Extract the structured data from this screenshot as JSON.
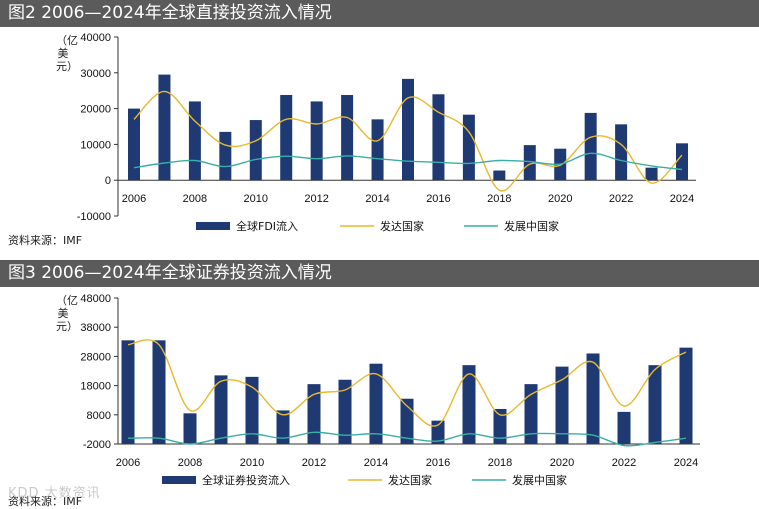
{
  "charts": [
    {
      "title": "图2  2006—2024年全球直接投资流入情况",
      "source": "资料来源：IMF",
      "ylabel": "（亿美元）"
    },
    {
      "title": "图3  2006—2024年全球证券投资流入情况",
      "source": "资料来源：IMF",
      "ylabel": "（亿美元）"
    }
  ],
  "watermark": "KDD 大数资讯",
  "colors": {
    "bar": "#1f3a73",
    "developed": "#e8b830",
    "developing": "#3aaea6",
    "title_bg": "#5b5b5b"
  },
  "chart_data": [
    {
      "type": "bar",
      "title": "图2  2006—2024年全球直接投资流入情况",
      "ylabel": "（亿美元）",
      "ylim": [
        -10000,
        40000
      ],
      "yticks": [
        -10000,
        0,
        10000,
        20000,
        30000,
        40000
      ],
      "categories": [
        2006,
        2007,
        2008,
        2009,
        2010,
        2011,
        2012,
        2013,
        2014,
        2015,
        2016,
        2017,
        2018,
        2019,
        2020,
        2021,
        2022,
        2023,
        2024
      ],
      "xtick_labels": [
        "2006",
        "2008",
        "2010",
        "2012",
        "2014",
        "2016",
        "2018",
        "2020",
        "2022",
        "2024"
      ],
      "series": [
        {
          "name": "全球FDI流入",
          "type": "bar",
          "values": [
            20000,
            29500,
            22000,
            13500,
            16800,
            23800,
            22000,
            23800,
            17000,
            28300,
            24000,
            18300,
            2700,
            9800,
            8800,
            18800,
            15600,
            3500,
            10300
          ]
        },
        {
          "name": "发达国家",
          "type": "line",
          "values": [
            17000,
            24800,
            16500,
            9800,
            11000,
            17000,
            15700,
            17500,
            11000,
            23000,
            19000,
            13500,
            -2800,
            4500,
            4200,
            12000,
            10000,
            -800,
            7000
          ]
        },
        {
          "name": "发展中国家",
          "type": "line",
          "values": [
            3500,
            4800,
            5500,
            3800,
            5800,
            6700,
            6000,
            6800,
            6000,
            5300,
            5000,
            4700,
            5500,
            5200,
            4500,
            7500,
            5500,
            4000,
            3000
          ]
        }
      ]
    },
    {
      "type": "bar",
      "title": "图3  2006—2024年全球证券投资流入情况",
      "ylabel": "（亿美元）",
      "ylim": [
        -2000,
        48000
      ],
      "yticks": [
        -2000,
        8000,
        18000,
        28000,
        38000,
        48000
      ],
      "categories": [
        2006,
        2007,
        2008,
        2009,
        2010,
        2011,
        2012,
        2013,
        2014,
        2015,
        2016,
        2017,
        2018,
        2019,
        2020,
        2021,
        2022,
        2023,
        2024
      ],
      "xtick_labels": [
        "2006",
        "2008",
        "2010",
        "2012",
        "2014",
        "2016",
        "2018",
        "2020",
        "2022",
        "2024"
      ],
      "series": [
        {
          "name": "全球证券投资流入",
          "type": "bar",
          "values": [
            33500,
            33500,
            8500,
            21500,
            21000,
            9500,
            18500,
            20000,
            25500,
            13500,
            6000,
            25000,
            10000,
            18500,
            24500,
            29000,
            9000,
            25000,
            31000
          ]
        },
        {
          "name": "发达国家",
          "type": "line",
          "values": [
            32000,
            32000,
            9500,
            19500,
            17500,
            8000,
            15000,
            16500,
            22000,
            11000,
            4500,
            22000,
            8000,
            15000,
            20000,
            26000,
            11000,
            23500,
            29500
          ]
        },
        {
          "name": "发展中国家",
          "type": "line",
          "values": [
            0,
            0,
            -2000,
            0,
            1500,
            0,
            2000,
            1000,
            1500,
            0,
            -1000,
            1500,
            0,
            1500,
            1500,
            1000,
            -2500,
            -1500,
            0
          ]
        }
      ]
    }
  ]
}
